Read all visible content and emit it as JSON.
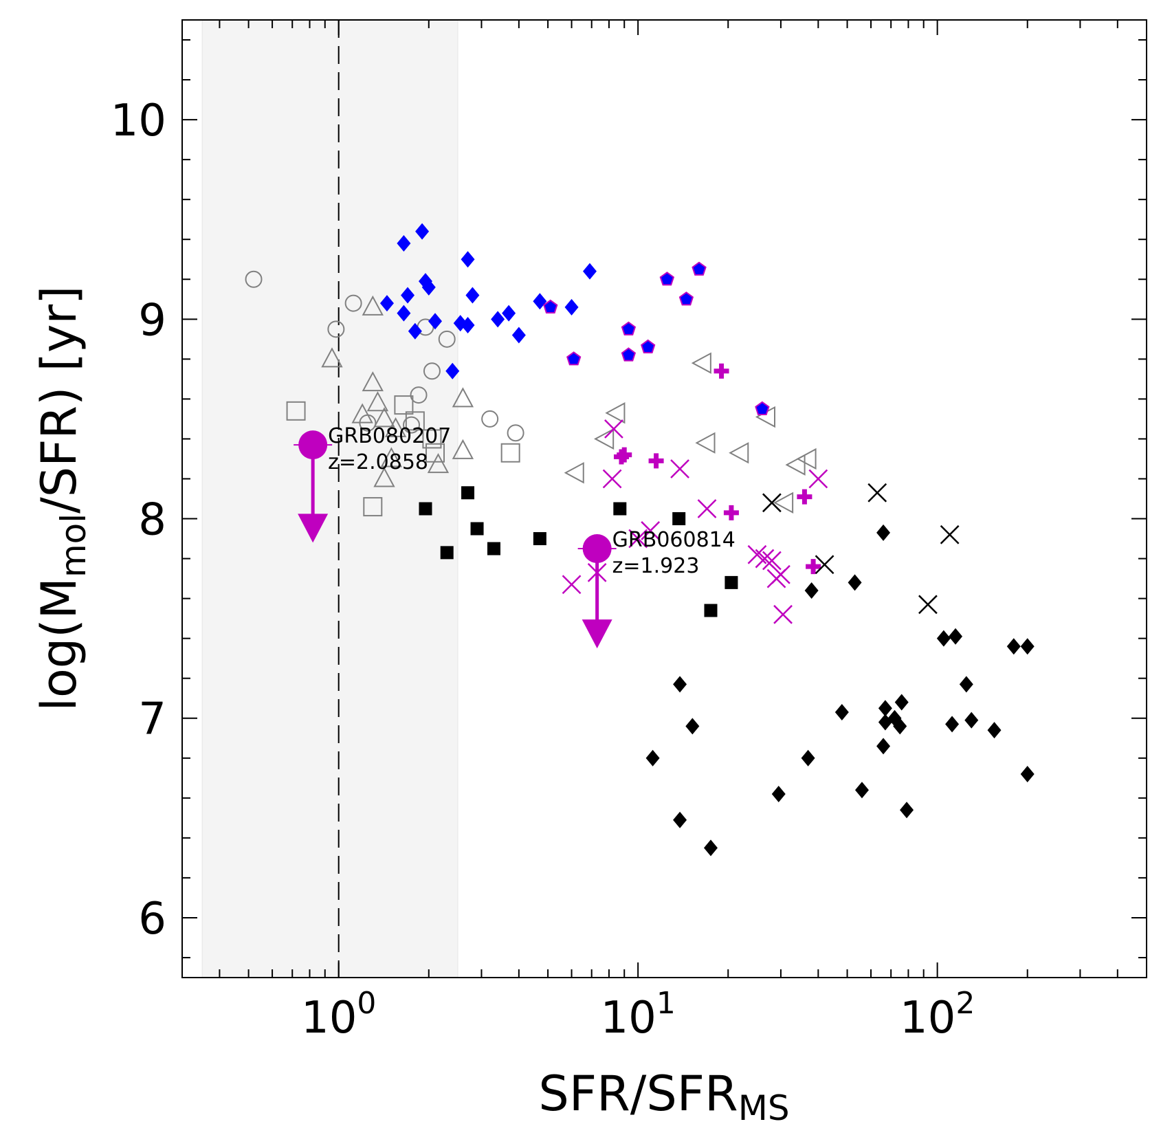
{
  "chart_data": {
    "type": "scatter",
    "xscale": "log",
    "xlim": [
      0.3,
      500
    ],
    "ylim": [
      5.7,
      10.5
    ],
    "xlabel": {
      "main": "SFR/SFR",
      "sub": "MS"
    },
    "ylabel": {
      "pre": "log(M",
      "sub": "mol",
      "post": "/SFR) [yr]"
    },
    "xticks": [
      {
        "value": 1,
        "base": "10",
        "exp": "0"
      },
      {
        "value": 10,
        "base": "10",
        "exp": "1"
      },
      {
        "value": 100,
        "base": "10",
        "exp": "2"
      }
    ],
    "yticks": [
      6,
      7,
      8,
      9,
      10
    ],
    "shaded_region": {
      "x": [
        0.35,
        2.5
      ],
      "color": "#f4f4f4"
    },
    "reference_line": {
      "x": 1.0,
      "style": "dashed"
    },
    "colors": {
      "blue": "#0000ff",
      "magenta": "#bf00bf",
      "black": "#000000",
      "gray": "#808080"
    },
    "series": [
      {
        "name": "gray-circles",
        "marker": "circle-open",
        "color": "#808080",
        "points": [
          [
            0.52,
            9.2
          ],
          [
            1.12,
            9.08
          ],
          [
            0.98,
            8.95
          ],
          [
            1.95,
            8.96
          ],
          [
            2.3,
            8.9
          ],
          [
            2.05,
            8.74
          ],
          [
            1.85,
            8.62
          ],
          [
            3.2,
            8.5
          ],
          [
            3.9,
            8.43
          ],
          [
            1.25,
            8.48
          ],
          [
            1.75,
            8.47
          ]
        ]
      },
      {
        "name": "gray-triangles-up",
        "marker": "triangle-up-open",
        "color": "#808080",
        "points": [
          [
            1.3,
            9.06
          ],
          [
            0.95,
            8.8
          ],
          [
            1.3,
            8.68
          ],
          [
            2.6,
            8.6
          ],
          [
            1.2,
            8.52
          ],
          [
            1.35,
            8.58
          ],
          [
            1.42,
            8.5
          ],
          [
            1.55,
            8.45
          ],
          [
            1.5,
            8.3
          ],
          [
            2.6,
            8.34
          ],
          [
            1.42,
            8.2
          ],
          [
            2.15,
            8.27
          ]
        ]
      },
      {
        "name": "gray-squares",
        "marker": "square-open",
        "color": "#808080",
        "points": [
          [
            0.72,
            8.54
          ],
          [
            1.65,
            8.57
          ],
          [
            1.8,
            8.49
          ],
          [
            2.05,
            8.4
          ],
          [
            3.75,
            8.33
          ],
          [
            1.3,
            8.06
          ],
          [
            2.1,
            8.33
          ]
        ]
      },
      {
        "name": "gray-triangles-left",
        "marker": "triangle-left-open",
        "color": "#808080",
        "points": [
          [
            16.5,
            8.78
          ],
          [
            8.5,
            8.53
          ],
          [
            27,
            8.51
          ],
          [
            7.8,
            8.4
          ],
          [
            17,
            8.38
          ],
          [
            22,
            8.33
          ],
          [
            6.2,
            8.23
          ],
          [
            37,
            8.3
          ],
          [
            34,
            8.27
          ],
          [
            31,
            8.08
          ]
        ]
      },
      {
        "name": "blue-diamonds",
        "marker": "diamond",
        "color": "#0000ff",
        "points": [
          [
            1.9,
            9.44
          ],
          [
            1.65,
            9.38
          ],
          [
            2.7,
            9.3
          ],
          [
            6.9,
            9.24
          ],
          [
            1.95,
            9.19
          ],
          [
            2.0,
            9.16
          ],
          [
            1.7,
            9.12
          ],
          [
            2.8,
            9.12
          ],
          [
            1.45,
            9.08
          ],
          [
            4.7,
            9.09
          ],
          [
            6.0,
            9.06
          ],
          [
            1.65,
            9.03
          ],
          [
            3.7,
            9.03
          ],
          [
            3.4,
            9.0
          ],
          [
            2.1,
            8.99
          ],
          [
            2.55,
            8.98
          ],
          [
            2.7,
            8.97
          ],
          [
            1.8,
            8.94
          ],
          [
            4.0,
            8.92
          ],
          [
            2.4,
            8.74
          ]
        ]
      },
      {
        "name": "magenta-pentagons",
        "marker": "pentagon",
        "color": "#bf00bf",
        "points": [
          [
            16,
            9.25
          ],
          [
            12.5,
            9.2
          ],
          [
            14.5,
            9.1
          ],
          [
            5.1,
            9.06
          ],
          [
            9.3,
            8.95
          ],
          [
            10.8,
            8.86
          ],
          [
            9.3,
            8.82
          ],
          [
            6.1,
            8.8
          ],
          [
            26,
            8.55
          ]
        ]
      },
      {
        "name": "magenta-plus",
        "marker": "plus",
        "color": "#bf00bf",
        "points": [
          [
            19,
            8.74
          ],
          [
            9.0,
            8.32
          ],
          [
            8.8,
            8.31
          ],
          [
            11.5,
            8.29
          ],
          [
            36,
            8.11
          ],
          [
            20.5,
            8.03
          ],
          [
            38.5,
            7.76
          ]
        ]
      },
      {
        "name": "magenta-crosses",
        "marker": "x",
        "color": "#bf00bf",
        "points": [
          [
            8.3,
            8.45
          ],
          [
            13.8,
            8.25
          ],
          [
            40,
            8.2
          ],
          [
            8.2,
            8.2
          ],
          [
            17,
            8.05
          ],
          [
            11,
            7.94
          ],
          [
            10,
            7.9
          ],
          [
            25,
            7.82
          ],
          [
            26.5,
            7.8
          ],
          [
            28,
            7.79
          ],
          [
            30,
            7.72
          ],
          [
            6.0,
            7.67
          ],
          [
            7.3,
            7.73
          ],
          [
            29,
            7.7
          ],
          [
            30.5,
            7.52
          ]
        ]
      },
      {
        "name": "black-crosses",
        "marker": "x",
        "color": "#000000",
        "points": [
          [
            28,
            8.08
          ],
          [
            63,
            8.13
          ],
          [
            110,
            7.92
          ],
          [
            42,
            7.77
          ],
          [
            93,
            7.57
          ]
        ]
      },
      {
        "name": "black-squares",
        "marker": "square",
        "color": "#000000",
        "points": [
          [
            2.7,
            8.13
          ],
          [
            1.95,
            8.05
          ],
          [
            8.7,
            8.05
          ],
          [
            13.7,
            8.0
          ],
          [
            2.9,
            7.95
          ],
          [
            4.7,
            7.9
          ],
          [
            3.3,
            7.85
          ],
          [
            2.3,
            7.83
          ],
          [
            20.5,
            7.68
          ],
          [
            17.5,
            7.54
          ]
        ]
      },
      {
        "name": "black-diamonds",
        "marker": "diamond",
        "color": "#000000",
        "points": [
          [
            66,
            7.93
          ],
          [
            38,
            7.64
          ],
          [
            53,
            7.68
          ],
          [
            105,
            7.4
          ],
          [
            115,
            7.41
          ],
          [
            180,
            7.36
          ],
          [
            200,
            7.36
          ],
          [
            13.8,
            7.17
          ],
          [
            125,
            7.17
          ],
          [
            48,
            7.03
          ],
          [
            67,
            7.05
          ],
          [
            67,
            6.98
          ],
          [
            72,
            7.0
          ],
          [
            76,
            7.08
          ],
          [
            75,
            6.96
          ],
          [
            15.2,
            6.96
          ],
          [
            112,
            6.97
          ],
          [
            130,
            6.99
          ],
          [
            155,
            6.94
          ],
          [
            66,
            6.86
          ],
          [
            11.2,
            6.8
          ],
          [
            37,
            6.8
          ],
          [
            200,
            6.72
          ],
          [
            56,
            6.64
          ],
          [
            29.5,
            6.62
          ],
          [
            79,
            6.54
          ],
          [
            13.8,
            6.49
          ],
          [
            17.5,
            6.35
          ]
        ]
      }
    ],
    "upper_limits": [
      {
        "label": "GRB080207",
        "redshift": "z=2.0858",
        "x": 0.82,
        "y": 8.37,
        "y_arrow_end": 7.88,
        "color": "#bf00bf"
      },
      {
        "label": "GRB060814",
        "redshift": "z=1.923",
        "x": 7.3,
        "y": 7.85,
        "y_arrow_end": 7.35,
        "color": "#bf00bf"
      }
    ]
  }
}
